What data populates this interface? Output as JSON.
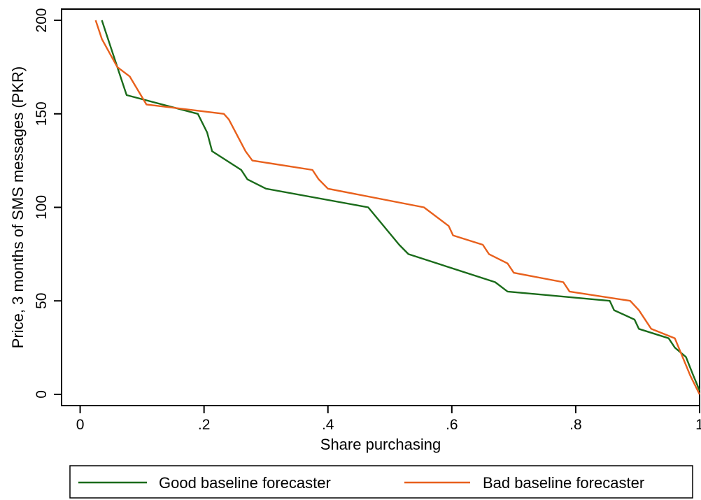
{
  "chart_data": {
    "type": "line",
    "title": "",
    "xlabel": "Share purchasing",
    "ylabel": "Price, 3 months of SMS messages (PKR)",
    "xlim": [
      -0.03,
      1.0
    ],
    "ylim": [
      -6,
      206
    ],
    "xticks": [
      0,
      0.2,
      0.4,
      0.6,
      0.8,
      1
    ],
    "xtick_labels": [
      "0",
      ".2",
      ".4",
      ".6",
      ".8",
      "1"
    ],
    "yticks": [
      0,
      50,
      100,
      150,
      200
    ],
    "ytick_labels": [
      "0",
      "50",
      "100",
      "150",
      "200"
    ],
    "grid": false,
    "legend": {
      "position": "bottom",
      "columns": 2
    },
    "series": [
      {
        "name": "Good baseline forecaster",
        "color": "#1a6b1a",
        "points": [
          [
            0.035,
            200
          ],
          [
            0.045,
            190
          ],
          [
            0.06,
            175
          ],
          [
            0.065,
            170
          ],
          [
            0.075,
            160
          ],
          [
            0.19,
            150
          ],
          [
            0.205,
            140
          ],
          [
            0.213,
            130
          ],
          [
            0.26,
            120
          ],
          [
            0.27,
            115
          ],
          [
            0.3,
            110
          ],
          [
            0.465,
            100
          ],
          [
            0.515,
            80
          ],
          [
            0.53,
            75
          ],
          [
            0.67,
            60
          ],
          [
            0.69,
            55
          ],
          [
            0.855,
            50
          ],
          [
            0.862,
            45
          ],
          [
            0.895,
            40
          ],
          [
            0.902,
            35
          ],
          [
            0.95,
            30
          ],
          [
            0.96,
            25
          ],
          [
            0.978,
            20
          ],
          [
            0.99,
            10
          ],
          [
            1.0,
            2
          ]
        ]
      },
      {
        "name": "Bad baseline forecaster",
        "color": "#e8601c",
        "points": [
          [
            0.025,
            200
          ],
          [
            0.035,
            190
          ],
          [
            0.06,
            175
          ],
          [
            0.072,
            172
          ],
          [
            0.08,
            170
          ],
          [
            0.107,
            155
          ],
          [
            0.232,
            150
          ],
          [
            0.24,
            147
          ],
          [
            0.267,
            130
          ],
          [
            0.278,
            125
          ],
          [
            0.375,
            120
          ],
          [
            0.385,
            115
          ],
          [
            0.4,
            110
          ],
          [
            0.555,
            100
          ],
          [
            0.595,
            90
          ],
          [
            0.602,
            85
          ],
          [
            0.65,
            80
          ],
          [
            0.66,
            75
          ],
          [
            0.69,
            70
          ],
          [
            0.7,
            65
          ],
          [
            0.78,
            60
          ],
          [
            0.79,
            55
          ],
          [
            0.888,
            50
          ],
          [
            0.902,
            45
          ],
          [
            0.922,
            35
          ],
          [
            0.96,
            30
          ],
          [
            0.985,
            10
          ],
          [
            1.0,
            0
          ]
        ]
      }
    ]
  }
}
